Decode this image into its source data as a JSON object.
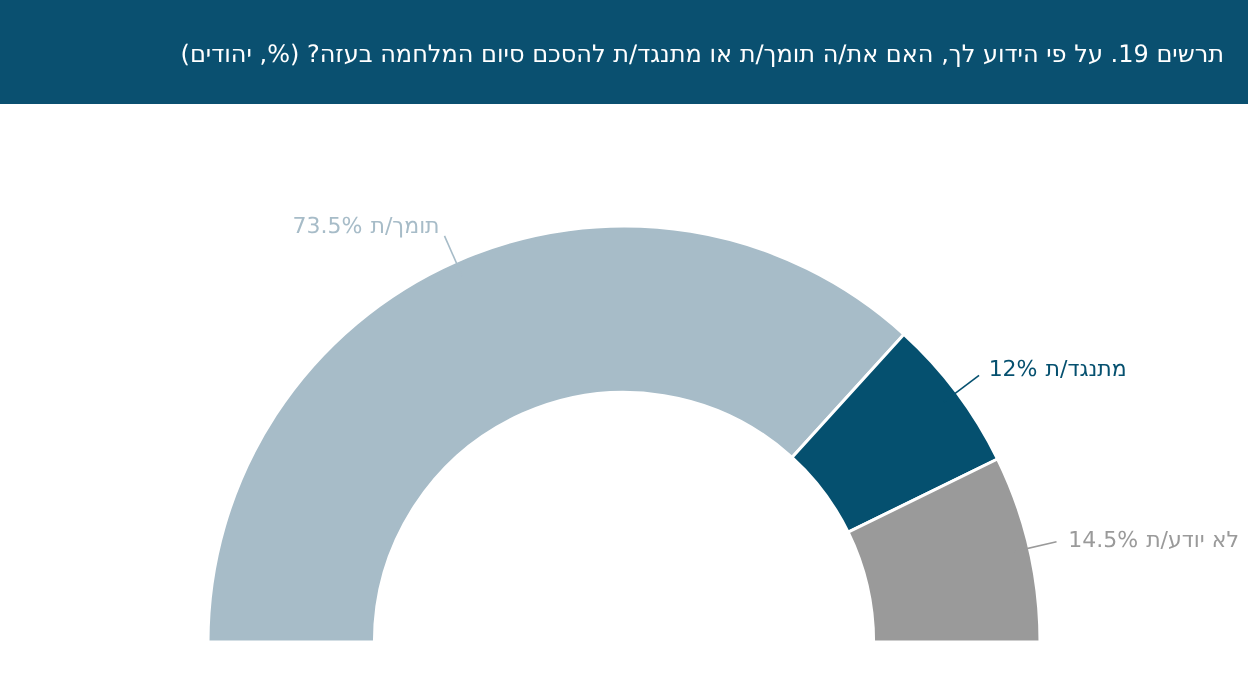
{
  "chart_data": {
    "type": "donut",
    "title": "תרשים 19. על פי הידוע לך, האם את/ה תומך/ת או מתנגד/ת להסכם סיום המלחמה בעזה? (%, יהודים)",
    "categories": [
      "תומך/ת",
      "מתנגד/ת",
      "לא יודע/ת"
    ],
    "values": [
      73.5,
      12,
      14.5
    ],
    "colors": [
      "#a7bcc8",
      "#05506f",
      "#9a9a9a"
    ],
    "value_labels": [
      "73.5%",
      "12%",
      "14.5%"
    ],
    "legend": false
  }
}
